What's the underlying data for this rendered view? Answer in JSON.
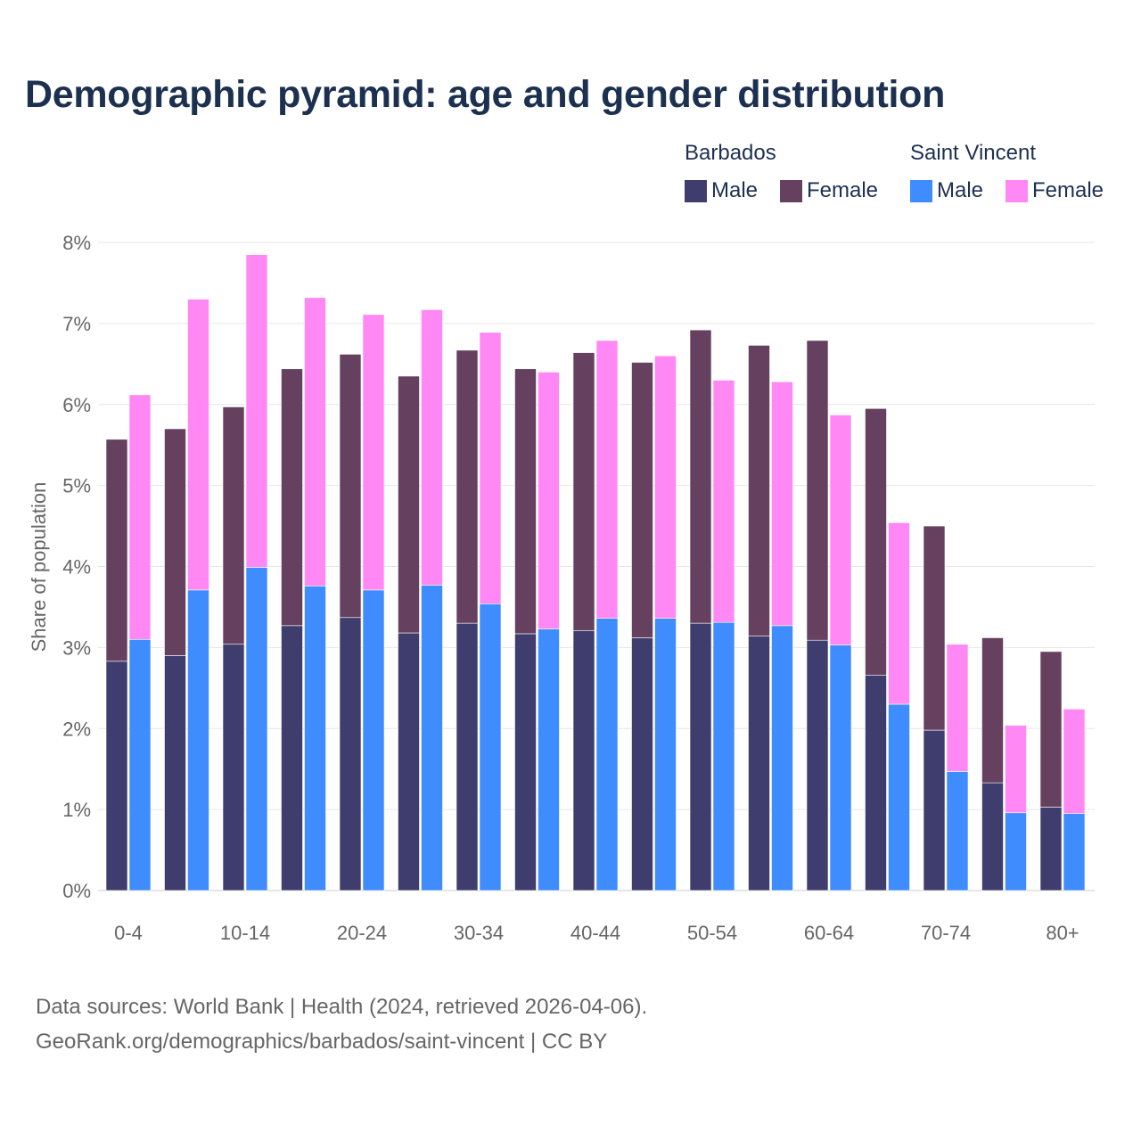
{
  "title": "Demographic pyramid: age and gender distribution",
  "legend": {
    "groups": [
      {
        "name": "Barbados",
        "items": [
          {
            "label": "Male",
            "color": "#3f3d6e"
          },
          {
            "label": "Female",
            "color": "#66405f"
          }
        ]
      },
      {
        "name": "Saint Vincent",
        "items": [
          {
            "label": "Male",
            "color": "#3f8cff"
          },
          {
            "label": "Female",
            "color": "#ff88f5"
          }
        ]
      }
    ]
  },
  "source_line1": "Data sources: World Bank | Health (2024, retrieved 2026-04-06).",
  "source_line2": "GeoRank.org/demographics/barbados/saint-vincent | CC BY",
  "chart_data": {
    "type": "bar",
    "stacked": true,
    "title": "Demographic pyramid: age and gender distribution",
    "xlabel": "",
    "ylabel": "Share of population",
    "ylim": [
      0,
      8
    ],
    "yticks": [
      "0%",
      "1%",
      "2%",
      "3%",
      "4%",
      "5%",
      "6%",
      "7%",
      "8%"
    ],
    "grid": true,
    "legend_position": "top-right",
    "categories": [
      "0-4",
      "5-9",
      "10-14",
      "15-19",
      "20-24",
      "25-29",
      "30-34",
      "35-39",
      "40-44",
      "45-49",
      "50-54",
      "55-59",
      "60-64",
      "65-69",
      "70-74",
      "75-79",
      "80+"
    ],
    "xtick_labels_shown": [
      "0-4",
      "10-14",
      "20-24",
      "30-34",
      "40-44",
      "50-54",
      "60-64",
      "70-74",
      "80+"
    ],
    "series": [
      {
        "name": "Barbados Male",
        "country": "Barbados",
        "stack": "Barbados",
        "values": [
          2.83,
          2.9,
          3.04,
          3.27,
          3.37,
          3.18,
          3.3,
          3.17,
          3.21,
          3.12,
          3.3,
          3.14,
          3.09,
          2.66,
          1.98,
          1.33,
          1.03
        ]
      },
      {
        "name": "Barbados Female",
        "country": "Barbados",
        "stack": "Barbados",
        "values": [
          2.74,
          2.8,
          2.93,
          3.17,
          3.25,
          3.17,
          3.37,
          3.27,
          3.43,
          3.4,
          3.62,
          3.59,
          3.7,
          3.29,
          2.52,
          1.79,
          1.92
        ]
      },
      {
        "name": "Saint Vincent Male",
        "country": "Saint Vincent",
        "stack": "Saint Vincent",
        "values": [
          3.1,
          3.71,
          3.99,
          3.76,
          3.71,
          3.77,
          3.54,
          3.23,
          3.36,
          3.36,
          3.31,
          3.27,
          3.03,
          2.3,
          1.47,
          0.96,
          0.95
        ]
      },
      {
        "name": "Saint Vincent Female",
        "country": "Saint Vincent",
        "stack": "Saint Vincent",
        "values": [
          3.02,
          3.59,
          3.86,
          3.56,
          3.4,
          3.4,
          3.35,
          3.17,
          3.43,
          3.24,
          2.99,
          3.01,
          2.84,
          2.24,
          1.57,
          1.08,
          1.29
        ]
      }
    ]
  }
}
